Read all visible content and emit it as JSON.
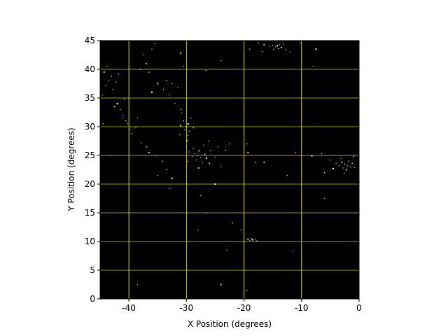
{
  "chart_data": {
    "type": "scatter",
    "title": "",
    "xlabel": "X Position (degrees)",
    "ylabel": "Y Position (degrees)",
    "xlim": [
      -45,
      0
    ],
    "ylim": [
      0,
      45
    ],
    "xticks": [
      "-40",
      "-30",
      "-20",
      "-10",
      "0"
    ],
    "xtick_values": [
      -40,
      -30,
      -20,
      -10,
      0
    ],
    "yticks": [
      "0",
      "5",
      "10",
      "15",
      "20",
      "25",
      "30",
      "35",
      "40",
      "45"
    ],
    "ytick_values": [
      0,
      5,
      10,
      15,
      20,
      25,
      30,
      35,
      40,
      45
    ],
    "grid": true,
    "grid_color": "#c8c800",
    "background_color": "#000000",
    "point_color": "#f5ead8",
    "points": [
      [
        -14.2,
        44.1
      ],
      [
        -14.5,
        43.9
      ],
      [
        -13.8,
        44.3
      ],
      [
        -14.0,
        43.6
      ],
      [
        -15.0,
        44.2
      ],
      [
        -13.5,
        43.8
      ],
      [
        -14.8,
        43.5
      ],
      [
        -13.2,
        44.4
      ],
      [
        -15.6,
        44.0
      ],
      [
        -12.8,
        43.4
      ],
      [
        -16.5,
        44.3
      ],
      [
        -17.5,
        44.6
      ],
      [
        -12.0,
        43.0
      ],
      [
        -10.2,
        44.6
      ],
      [
        -16.8,
        43.1
      ],
      [
        -7.5,
        43.5
      ],
      [
        -8.0,
        40.5
      ],
      [
        -19.0,
        43.5
      ],
      [
        -2.5,
        23.5
      ],
      [
        -2.0,
        23.2
      ],
      [
        -3.0,
        23.8
      ],
      [
        -1.5,
        23.0
      ],
      [
        -2.8,
        22.8
      ],
      [
        -3.5,
        23.2
      ],
      [
        -1.8,
        24.0
      ],
      [
        -2.2,
        22.5
      ],
      [
        -4.0,
        23.6
      ],
      [
        -1.2,
        23.6
      ],
      [
        -3.2,
        24.5
      ],
      [
        -0.8,
        22.9
      ],
      [
        -4.5,
        22.7
      ],
      [
        -2.6,
        21.9
      ],
      [
        -5.0,
        24.2
      ],
      [
        -1.0,
        24.8
      ],
      [
        -6.5,
        25.3
      ],
      [
        -8.2,
        24.9
      ],
      [
        -6.0,
        22.0
      ],
      [
        -28.0,
        25.0
      ],
      [
        -27.5,
        24.6
      ],
      [
        -28.5,
        25.3
      ],
      [
        -27.8,
        25.8
      ],
      [
        -28.3,
        24.2
      ],
      [
        -26.8,
        25.2
      ],
      [
        -29.0,
        24.8
      ],
      [
        -27.2,
        23.8
      ],
      [
        -26.5,
        24.5
      ],
      [
        -28.8,
        26.2
      ],
      [
        -29.5,
        25.6
      ],
      [
        -25.8,
        25.8
      ],
      [
        -27.0,
        26.8
      ],
      [
        -26.0,
        23.6
      ],
      [
        -29.8,
        23.9
      ],
      [
        -25.0,
        24.7
      ],
      [
        -24.5,
        26.5
      ],
      [
        -26.2,
        27.5
      ],
      [
        -27.9,
        22.8
      ],
      [
        -24.0,
        23.0
      ],
      [
        -23.2,
        25.9
      ],
      [
        -22.5,
        27.0
      ],
      [
        -30.0,
        30.0
      ],
      [
        -29.7,
        30.5
      ],
      [
        -30.3,
        29.5
      ],
      [
        -29.5,
        29.2
      ],
      [
        -30.5,
        31.0
      ],
      [
        -29.8,
        28.5
      ],
      [
        -31.0,
        30.2
      ],
      [
        -29.2,
        31.5
      ],
      [
        -30.8,
        32.4
      ],
      [
        -31.2,
        28.6
      ],
      [
        -28.8,
        29.8
      ],
      [
        -29.9,
        27.6
      ],
      [
        -41.0,
        32.0
      ],
      [
        -40.5,
        31.0
      ],
      [
        -41.5,
        33.0
      ],
      [
        -40.2,
        30.5
      ],
      [
        -42.0,
        34.0
      ],
      [
        -39.8,
        29.5
      ],
      [
        -41.2,
        31.5
      ],
      [
        -39.5,
        28.8
      ],
      [
        -38.8,
        29.8
      ],
      [
        -42.5,
        33.5
      ],
      [
        -40.8,
        34.8
      ],
      [
        -38.5,
        31.5
      ],
      [
        -37.8,
        27.2
      ],
      [
        -36.9,
        26.5
      ],
      [
        -36.5,
        25.5
      ],
      [
        -35.5,
        25.0
      ],
      [
        -34.2,
        24.0
      ],
      [
        -33.5,
        22.5
      ],
      [
        -35.0,
        21.5
      ],
      [
        -32.5,
        21.0
      ],
      [
        -43.5,
        38.0
      ],
      [
        -44.0,
        37.2
      ],
      [
        -43.0,
        38.8
      ],
      [
        -42.8,
        36.5
      ],
      [
        -44.3,
        39.5
      ],
      [
        -43.8,
        40.5
      ],
      [
        -42.2,
        37.8
      ],
      [
        -44.6,
        35.5
      ],
      [
        -41.8,
        39.2
      ],
      [
        -35.0,
        37.5
      ],
      [
        -34.0,
        36.5
      ],
      [
        -33.5,
        38.0
      ],
      [
        -32.5,
        37.5
      ],
      [
        -31.5,
        36.8
      ],
      [
        -36.0,
        36.0
      ],
      [
        -33.0,
        35.5
      ],
      [
        -32.0,
        34.0
      ],
      [
        -31.0,
        33.0
      ],
      [
        -37.5,
        42.5
      ],
      [
        -37.0,
        41.0
      ],
      [
        -36.5,
        39.5
      ],
      [
        -36.0,
        43.5
      ],
      [
        -35.5,
        44.5
      ],
      [
        -38.0,
        40.0
      ],
      [
        -31.0,
        42.8
      ],
      [
        -30.5,
        40.5
      ],
      [
        -26.5,
        39.8
      ],
      [
        -24.0,
        41.5
      ],
      [
        -20.0,
        42.5
      ],
      [
        -18.5,
        10.3
      ],
      [
        -18.0,
        10.4
      ],
      [
        -19.0,
        10.2
      ],
      [
        -18.7,
        10.5
      ],
      [
        -17.8,
        10.1
      ],
      [
        -19.3,
        10.4
      ],
      [
        -22.0,
        13.2
      ],
      [
        -23.0,
        8.5
      ],
      [
        -11.5,
        8.3
      ],
      [
        -19.5,
        1.5
      ],
      [
        -24.0,
        2.5
      ],
      [
        -38.5,
        2.5
      ],
      [
        -27.5,
        18.0
      ],
      [
        -26.5,
        15.0
      ],
      [
        -28.0,
        12.0
      ],
      [
        -25.0,
        20.0
      ],
      [
        -33.0,
        19.2
      ],
      [
        -45.0,
        34.0
      ],
      [
        -44.5,
        30.5
      ],
      [
        -43.2,
        25.0
      ],
      [
        -16.5,
        23.8
      ],
      [
        -18.0,
        23.8
      ],
      [
        -12.5,
        21.5
      ],
      [
        -11.0,
        25.5
      ],
      [
        -19.5,
        27.0
      ],
      [
        -19.3,
        25.5
      ],
      [
        -6.0,
        17.5
      ],
      [
        -20.5,
        12.0
      ]
    ]
  }
}
